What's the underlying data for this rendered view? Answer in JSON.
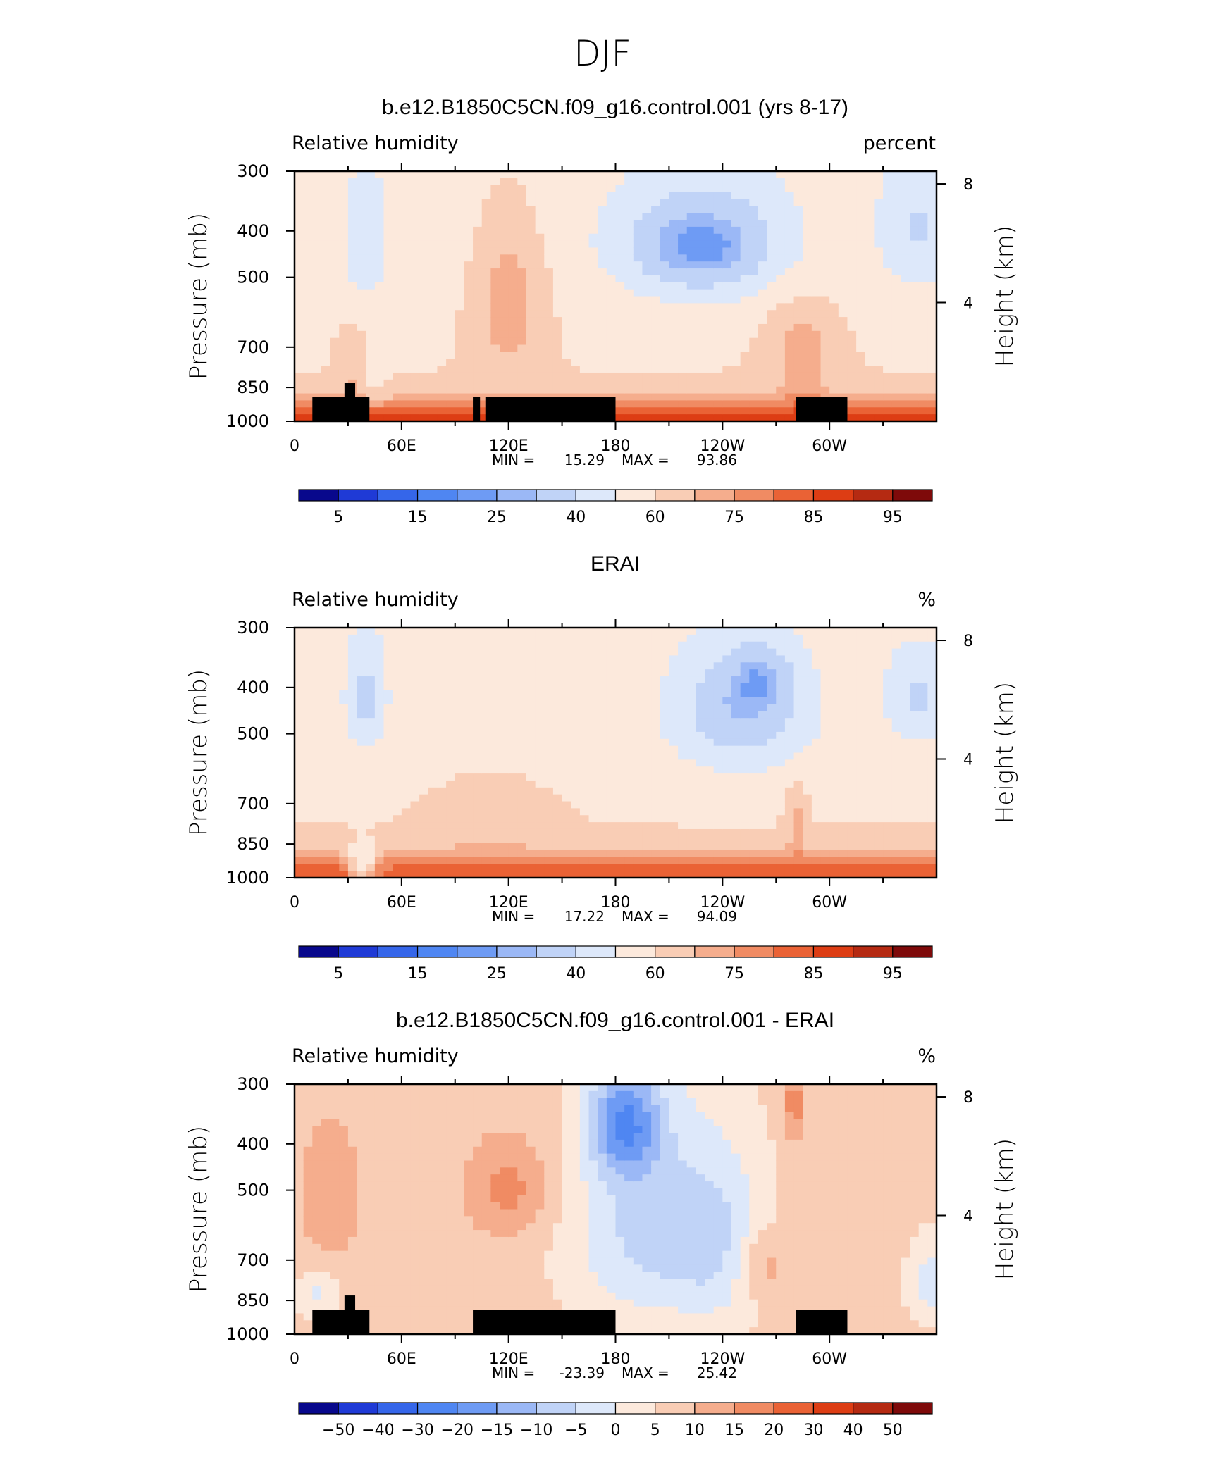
{
  "figure_title": "DJF",
  "chart_data": [
    {
      "type": "heatmap",
      "title": "b.e12.B1850C5CN.f09_g16.control.001 (yrs 8-17)",
      "left_string": "Relative humidity",
      "right_string": "percent",
      "xlabel": "",
      "ylabel": "Pressure (mb)",
      "ylabel_right": "Height (km)",
      "x_ticklabels": [
        "0",
        "60E",
        "120E",
        "180",
        "120W",
        "60W"
      ],
      "x_ticks_deg": [
        0,
        60,
        120,
        180,
        240,
        300
      ],
      "xlim": [
        0,
        360
      ],
      "y_ticklabels": [
        "300",
        "400",
        "500",
        "700",
        "850",
        "1000"
      ],
      "y_ticks": [
        300,
        400,
        500,
        700,
        850,
        1000
      ],
      "ylim": [
        1000,
        300
      ],
      "right_ticklabels": [
        "8",
        "4"
      ],
      "right_ticks_km": [
        8,
        4
      ],
      "min_label": "MIN =",
      "min_value": "15.29",
      "max_label": "MAX =",
      "max_value": "93.86",
      "colorbar_levels": [
        5,
        10,
        15,
        20,
        25,
        30,
        40,
        50,
        60,
        70,
        75,
        80,
        85,
        90,
        95
      ],
      "colorbar_ticklabels": [
        "5",
        "15",
        "25",
        "40",
        "60",
        "75",
        "85",
        "95"
      ],
      "colors": [
        "#08088c",
        "#1f3ad6",
        "#3566ea",
        "#4f86f2",
        "#6e9bf4",
        "#9bb8f6",
        "#c0d3f7",
        "#dde8fa",
        "#fce9dc",
        "#f9cdb5",
        "#f5ad8d",
        "#f08b63",
        "#ea6235",
        "#dd3d14",
        "#b52a12",
        "#7e0a0a"
      ]
    },
    {
      "type": "heatmap",
      "title": "ERAI",
      "left_string": "Relative humidity",
      "right_string": "%",
      "xlabel": "",
      "ylabel": "Pressure (mb)",
      "ylabel_right": "Height (km)",
      "x_ticklabels": [
        "0",
        "60E",
        "120E",
        "180",
        "120W",
        "60W"
      ],
      "x_ticks_deg": [
        0,
        60,
        120,
        180,
        240,
        300
      ],
      "xlim": [
        0,
        360
      ],
      "y_ticklabels": [
        "300",
        "400",
        "500",
        "700",
        "850",
        "1000"
      ],
      "y_ticks": [
        300,
        400,
        500,
        700,
        850,
        1000
      ],
      "ylim": [
        1000,
        300
      ],
      "right_ticklabels": [
        "8",
        "4"
      ],
      "right_ticks_km": [
        8,
        4
      ],
      "min_label": "MIN =",
      "min_value": "17.22",
      "max_label": "MAX =",
      "max_value": "94.09",
      "colorbar_levels": [
        5,
        10,
        15,
        20,
        25,
        30,
        40,
        50,
        60,
        70,
        75,
        80,
        85,
        90,
        95
      ],
      "colorbar_ticklabels": [
        "5",
        "15",
        "25",
        "40",
        "60",
        "75",
        "85",
        "95"
      ],
      "colors": [
        "#08088c",
        "#1f3ad6",
        "#3566ea",
        "#4f86f2",
        "#6e9bf4",
        "#9bb8f6",
        "#c0d3f7",
        "#dde8fa",
        "#fce9dc",
        "#f9cdb5",
        "#f5ad8d",
        "#f08b63",
        "#ea6235",
        "#dd3d14",
        "#b52a12",
        "#7e0a0a"
      ]
    },
    {
      "type": "heatmap",
      "title": "b.e12.B1850C5CN.f09_g16.control.001 - ERAI",
      "left_string": "Relative humidity",
      "right_string": "%",
      "xlabel": "",
      "ylabel": "Pressure (mb)",
      "ylabel_right": "Height (km)",
      "x_ticklabels": [
        "0",
        "60E",
        "120E",
        "180",
        "120W",
        "60W"
      ],
      "x_ticks_deg": [
        0,
        60,
        120,
        180,
        240,
        300
      ],
      "xlim": [
        0,
        360
      ],
      "y_ticklabels": [
        "300",
        "400",
        "500",
        "700",
        "850",
        "1000"
      ],
      "y_ticks": [
        300,
        400,
        500,
        700,
        850,
        1000
      ],
      "ylim": [
        1000,
        300
      ],
      "right_ticklabels": [
        "8",
        "4"
      ],
      "right_ticks_km": [
        8,
        4
      ],
      "min_label": "MIN =",
      "min_value": "-23.39",
      "max_label": "MAX =",
      "max_value": "25.42",
      "colorbar_levels": [
        -50,
        -40,
        -30,
        -20,
        -15,
        -10,
        -5,
        0,
        5,
        10,
        15,
        20,
        30,
        40,
        50
      ],
      "colorbar_ticklabels": [
        "-50",
        "-40",
        "-30",
        "-20",
        "-15",
        "-10",
        "-5",
        "0",
        "5",
        "10",
        "15",
        "20",
        "30",
        "40",
        "50"
      ],
      "colors": [
        "#08088c",
        "#1f3ad6",
        "#3566ea",
        "#4f86f2",
        "#6e9bf4",
        "#9bb8f6",
        "#c0d3f7",
        "#dde8fa",
        "#fce9dc",
        "#f9cdb5",
        "#f5ad8d",
        "#f08b63",
        "#ea6235",
        "#dd3d14",
        "#b52a12",
        "#7e0a0a"
      ]
    }
  ]
}
